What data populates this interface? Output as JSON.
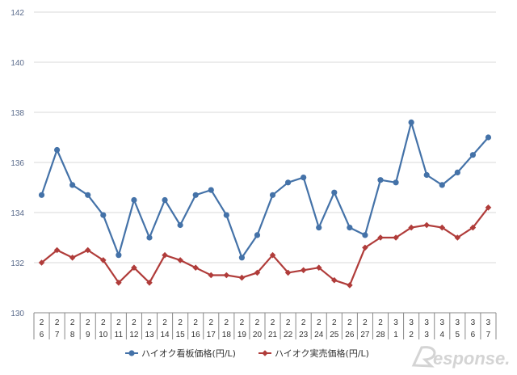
{
  "chart_data": {
    "type": "line",
    "categories": [
      [
        "2",
        "6"
      ],
      [
        "2",
        "7"
      ],
      [
        "2",
        "8"
      ],
      [
        "2",
        "9"
      ],
      [
        "2",
        "10"
      ],
      [
        "2",
        "11"
      ],
      [
        "2",
        "12"
      ],
      [
        "2",
        "13"
      ],
      [
        "2",
        "14"
      ],
      [
        "2",
        "15"
      ],
      [
        "2",
        "16"
      ],
      [
        "2",
        "17"
      ],
      [
        "2",
        "18"
      ],
      [
        "2",
        "19"
      ],
      [
        "2",
        "20"
      ],
      [
        "2",
        "21"
      ],
      [
        "2",
        "22"
      ],
      [
        "2",
        "23"
      ],
      [
        "2",
        "24"
      ],
      [
        "2",
        "25"
      ],
      [
        "2",
        "26"
      ],
      [
        "2",
        "27"
      ],
      [
        "2",
        "28"
      ],
      [
        "3",
        "1"
      ],
      [
        "3",
        "2"
      ],
      [
        "3",
        "3"
      ],
      [
        "3",
        "4"
      ],
      [
        "3",
        "5"
      ],
      [
        "3",
        "6"
      ],
      [
        "3",
        "7"
      ]
    ],
    "series": [
      {
        "name": "ハイオク看板価格(円/L)",
        "color": "#4472a8",
        "marker": "circle",
        "values": [
          134.7,
          136.5,
          135.1,
          134.7,
          133.9,
          132.3,
          134.5,
          133.0,
          134.5,
          133.5,
          134.7,
          134.9,
          133.9,
          132.2,
          133.1,
          134.7,
          135.2,
          135.4,
          133.4,
          134.8,
          133.4,
          133.1,
          135.3,
          135.2,
          137.6,
          135.5,
          135.1,
          135.6,
          136.3,
          137.0
        ]
      },
      {
        "name": "ハイオク実売価格(円/L)",
        "color": "#b03c3a",
        "marker": "diamond",
        "values": [
          132.0,
          132.5,
          132.2,
          132.5,
          132.1,
          131.2,
          131.8,
          131.2,
          132.3,
          132.1,
          131.8,
          131.5,
          131.5,
          131.4,
          131.6,
          132.3,
          131.6,
          131.7,
          131.8,
          131.3,
          131.1,
          132.6,
          133.0,
          133.0,
          133.4,
          133.5,
          133.4,
          133.0,
          133.4,
          134.2
        ]
      }
    ],
    "ylim": [
      130,
      142
    ],
    "yticks": [
      "130",
      "132",
      "134",
      "136",
      "138",
      "140",
      "142"
    ],
    "grid": true,
    "legend_position": "bottom"
  },
  "watermark": {
    "text": "esponse."
  }
}
